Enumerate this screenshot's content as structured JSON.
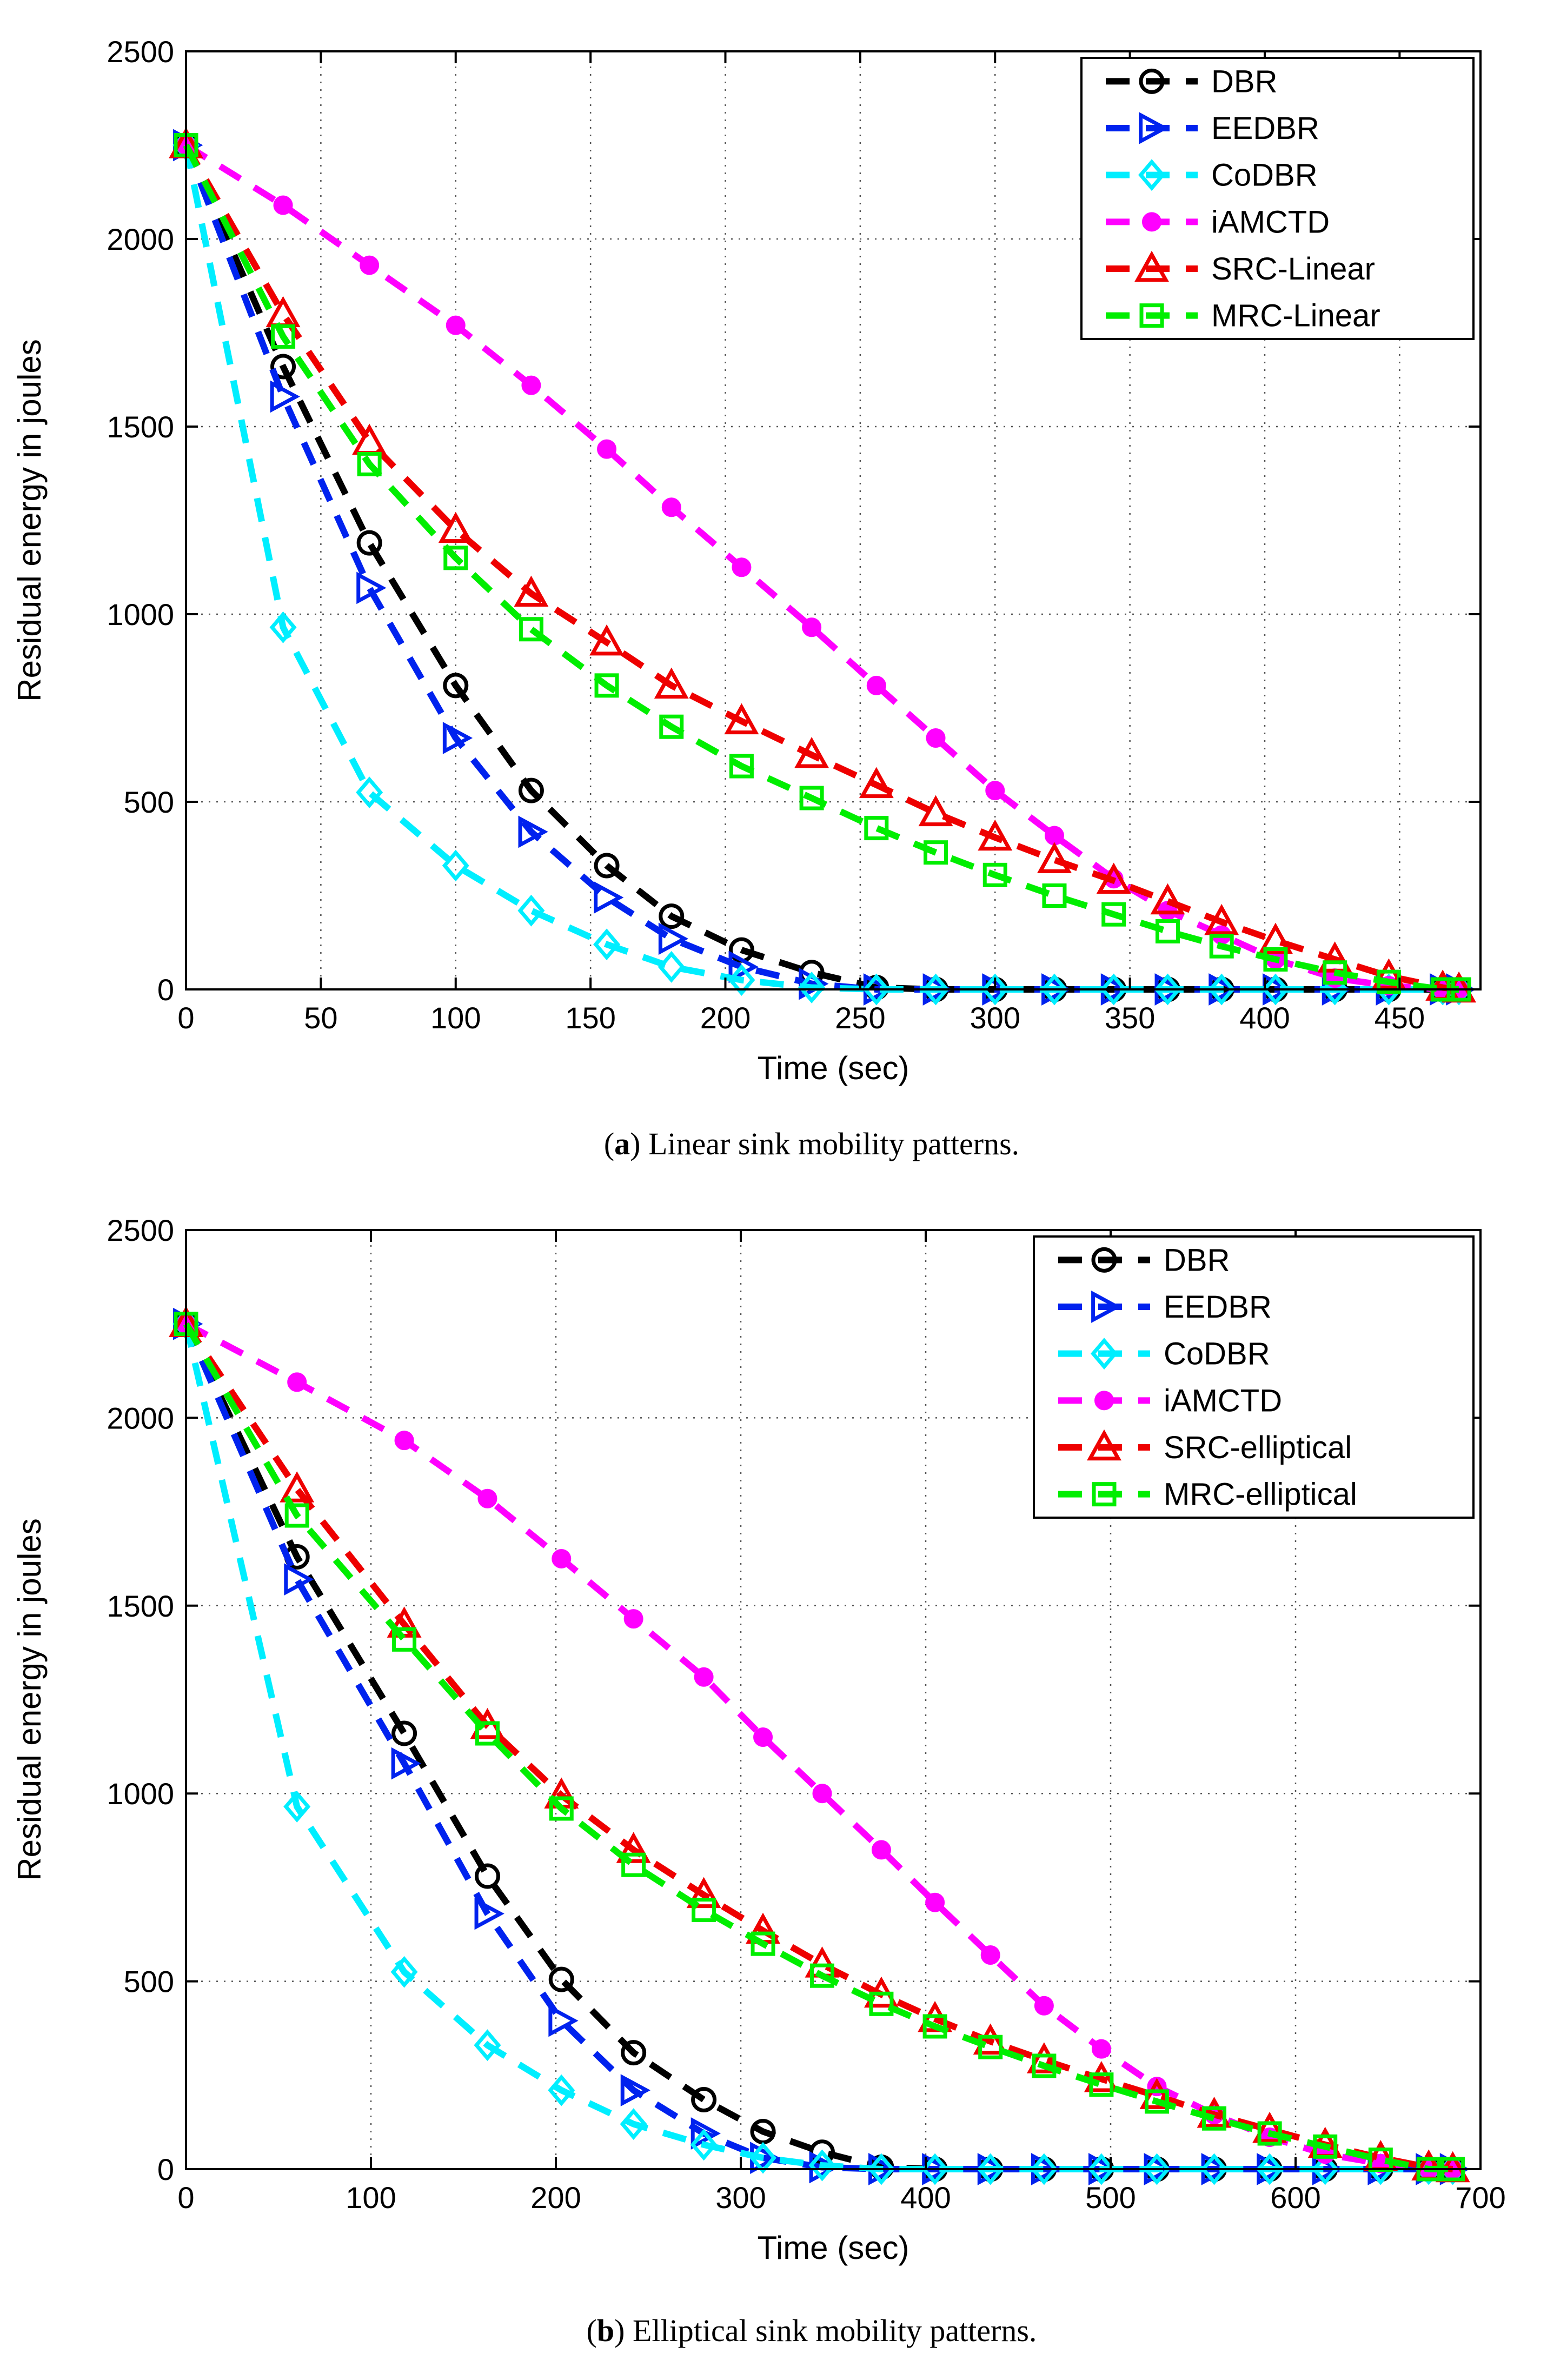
{
  "chart_data": [
    {
      "type": "line",
      "id": "a",
      "caption_letter": "a",
      "caption_open": "(",
      "caption_close": ")",
      "caption_text": " Linear sink mobility patterns.",
      "xlabel": "Time (sec)",
      "ylabel": "Residual energy in joules",
      "xlim": [
        0,
        480
      ],
      "ylim": [
        0,
        2500
      ],
      "xticks": [
        0,
        50,
        100,
        150,
        200,
        250,
        300,
        350,
        400,
        450
      ],
      "yticks": [
        0,
        500,
        1000,
        1500,
        2000,
        2500
      ],
      "grid": true,
      "legend_position": "top-right",
      "series": [
        {
          "name": "DBR",
          "color": "#000000",
          "marker": "circle",
          "x": [
            0,
            36,
            68,
            100,
            128,
            156,
            180,
            206,
            232,
            256,
            278,
            300,
            322,
            344,
            364,
            384,
            404,
            426,
            446,
            466,
            472
          ],
          "y": [
            2250,
            1660,
            1190,
            810,
            530,
            330,
            195,
            105,
            45,
            5,
            0,
            0,
            0,
            0,
            0,
            0,
            0,
            0,
            0,
            0,
            0
          ]
        },
        {
          "name": "EEDBR",
          "color": "#0022ee",
          "marker": "triangle-right",
          "x": [
            0,
            36,
            68,
            100,
            128,
            156,
            180,
            206,
            232,
            256,
            278,
            300,
            322,
            344,
            364,
            384,
            404,
            426,
            446,
            466,
            472
          ],
          "y": [
            2250,
            1580,
            1070,
            670,
            420,
            245,
            135,
            60,
            15,
            0,
            0,
            0,
            0,
            0,
            0,
            0,
            0,
            0,
            0,
            0,
            0
          ]
        },
        {
          "name": "CoDBR",
          "color": "#00eeff",
          "marker": "diamond",
          "x": [
            0,
            36,
            68,
            100,
            128,
            156,
            180,
            206,
            232,
            256,
            278,
            300,
            322,
            344,
            364,
            384,
            404,
            426,
            446,
            466,
            472
          ],
          "y": [
            2250,
            965,
            525,
            330,
            210,
            120,
            60,
            25,
            5,
            0,
            0,
            0,
            0,
            0,
            0,
            0,
            0,
            0,
            0,
            0,
            0
          ]
        },
        {
          "name": "iAMCTD",
          "color": "#ff00ff",
          "marker": "dot",
          "x": [
            0,
            36,
            68,
            100,
            128,
            156,
            180,
            206,
            232,
            256,
            278,
            300,
            322,
            344,
            364,
            384,
            404,
            426,
            446,
            466,
            472
          ],
          "y": [
            2250,
            2090,
            1930,
            1770,
            1610,
            1440,
            1285,
            1125,
            965,
            810,
            670,
            530,
            410,
            295,
            210,
            145,
            80,
            30,
            10,
            0,
            0
          ]
        },
        {
          "name": "SRC-Linear",
          "color": "#ee0000",
          "marker": "triangle-up",
          "x": [
            0,
            36,
            68,
            100,
            128,
            156,
            180,
            206,
            232,
            256,
            278,
            300,
            322,
            344,
            364,
            384,
            404,
            426,
            446,
            466,
            472
          ],
          "y": [
            2250,
            1800,
            1460,
            1225,
            1055,
            925,
            810,
            715,
            625,
            545,
            470,
            405,
            345,
            290,
            235,
            180,
            130,
            80,
            35,
            5,
            0
          ]
        },
        {
          "name": "MRC-Linear",
          "color": "#00ee00",
          "marker": "square",
          "x": [
            0,
            36,
            68,
            100,
            128,
            156,
            180,
            206,
            232,
            256,
            278,
            300,
            322,
            344,
            364,
            384,
            404,
            426,
            446,
            466,
            472
          ],
          "y": [
            2250,
            1740,
            1400,
            1150,
            960,
            810,
            700,
            595,
            510,
            430,
            365,
            305,
            250,
            200,
            155,
            115,
            80,
            45,
            20,
            0,
            0
          ]
        }
      ]
    },
    {
      "type": "line",
      "id": "b",
      "caption_letter": "b",
      "caption_open": "(",
      "caption_close": ")",
      "caption_text": " Elliptical sink mobility patterns.",
      "xlabel": "Time (sec)",
      "ylabel": "Residual energy in joules",
      "xlim": [
        0,
        700
      ],
      "ylim": [
        0,
        2500
      ],
      "xticks": [
        0,
        100,
        200,
        300,
        400,
        500,
        600,
        700
      ],
      "yticks": [
        0,
        500,
        1000,
        1500,
        2000,
        2500
      ],
      "grid": true,
      "legend_position": "top-right",
      "series": [
        {
          "name": "DBR",
          "color": "#000000",
          "marker": "circle",
          "x": [
            0,
            60,
            118,
            163,
            203,
            242,
            280,
            312,
            344,
            376,
            405,
            435,
            464,
            495,
            525,
            556,
            586,
            616,
            646,
            672,
            685
          ],
          "y": [
            2250,
            1630,
            1160,
            780,
            505,
            310,
            185,
            100,
            45,
            5,
            0,
            0,
            0,
            0,
            0,
            0,
            0,
            0,
            0,
            0,
            0
          ]
        },
        {
          "name": "EEDBR",
          "color": "#0022ee",
          "marker": "triangle-right",
          "x": [
            0,
            60,
            118,
            163,
            203,
            242,
            280,
            312,
            344,
            376,
            405,
            435,
            464,
            495,
            525,
            556,
            586,
            616,
            646,
            672,
            685
          ],
          "y": [
            2250,
            1570,
            1080,
            680,
            395,
            210,
            95,
            30,
            5,
            0,
            0,
            0,
            0,
            0,
            0,
            0,
            0,
            0,
            0,
            0,
            0
          ]
        },
        {
          "name": "CoDBR",
          "color": "#00eeff",
          "marker": "diamond",
          "x": [
            0,
            60,
            118,
            163,
            203,
            242,
            280,
            312,
            344,
            376,
            405,
            435,
            464,
            495,
            525,
            556,
            586,
            616,
            646,
            672,
            685
          ],
          "y": [
            2250,
            965,
            525,
            330,
            210,
            120,
            65,
            30,
            10,
            0,
            0,
            0,
            0,
            0,
            0,
            0,
            0,
            0,
            0,
            0,
            0
          ]
        },
        {
          "name": "iAMCTD",
          "color": "#ff00ff",
          "marker": "dot",
          "x": [
            0,
            60,
            118,
            163,
            203,
            242,
            280,
            312,
            344,
            376,
            405,
            435,
            464,
            495,
            525,
            556,
            586,
            616,
            646,
            672,
            685
          ],
          "y": [
            2250,
            2095,
            1940,
            1785,
            1625,
            1465,
            1310,
            1150,
            1000,
            850,
            710,
            570,
            435,
            320,
            220,
            145,
            85,
            40,
            15,
            0,
            0
          ]
        },
        {
          "name": "SRC-elliptical",
          "color": "#ee0000",
          "marker": "triangle-up",
          "x": [
            0,
            60,
            118,
            163,
            203,
            242,
            280,
            312,
            344,
            376,
            405,
            435,
            464,
            495,
            525,
            556,
            586,
            616,
            646,
            672,
            685
          ],
          "y": [
            2250,
            1810,
            1450,
            1180,
            995,
            850,
            730,
            635,
            545,
            465,
            400,
            340,
            290,
            240,
            195,
            145,
            105,
            65,
            30,
            5,
            0
          ]
        },
        {
          "name": "MRC-elliptical",
          "color": "#00ee00",
          "marker": "square",
          "x": [
            0,
            60,
            118,
            163,
            203,
            242,
            280,
            312,
            344,
            376,
            405,
            435,
            464,
            495,
            525,
            556,
            586,
            616,
            646,
            672,
            685
          ],
          "y": [
            2250,
            1740,
            1410,
            1160,
            960,
            810,
            690,
            600,
            515,
            440,
            380,
            325,
            275,
            225,
            180,
            135,
            95,
            60,
            25,
            0,
            0
          ]
        }
      ]
    }
  ]
}
